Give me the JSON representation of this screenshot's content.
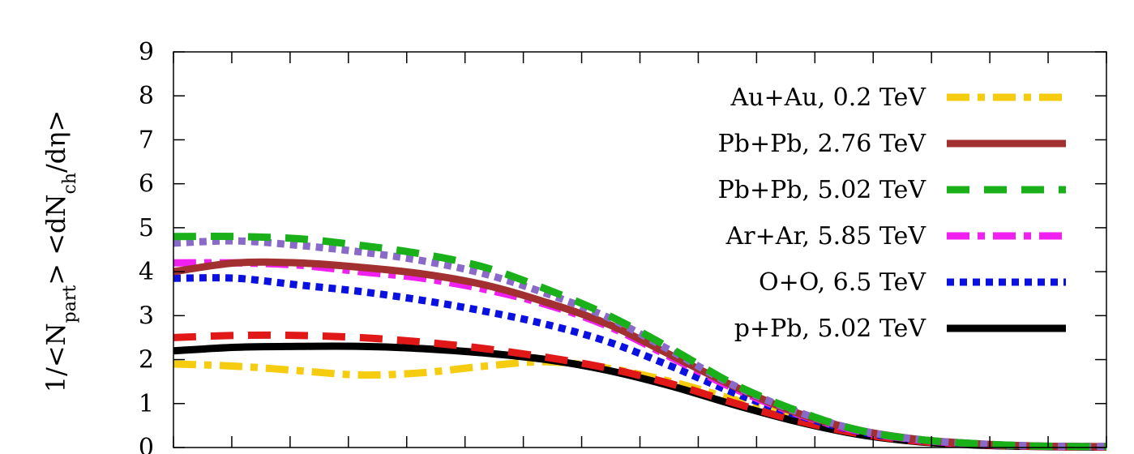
{
  "chart_data": {
    "type": "line",
    "title": "",
    "xlabel": "",
    "ylabel": {
      "p1": "1/<N",
      "s1": "part",
      "p2": "> <dN",
      "s2": "ch",
      "p3": "/dη>"
    },
    "xlim": [
      0,
      15
    ],
    "ylim": [
      0,
      9
    ],
    "yticks": [
      "0",
      "1",
      "2",
      "3",
      "4",
      "5",
      "6",
      "7",
      "8",
      "9"
    ],
    "grid": false,
    "legend_position": "top-right",
    "series": [
      {
        "name": "Au+Au, 0.2 TeV",
        "color": "#f5cc10",
        "dash": "dashdot",
        "x": [
          0,
          1,
          2,
          3,
          4,
          5,
          6,
          7,
          8,
          9,
          10,
          11,
          12,
          13,
          14,
          15
        ],
        "y": [
          1.9,
          1.85,
          1.75,
          1.65,
          1.7,
          1.85,
          1.95,
          1.8,
          1.5,
          1.1,
          0.7,
          0.35,
          0.15,
          0.07,
          0.03,
          0.02
        ]
      },
      {
        "name": "Pb+Pb, 2.76 TeV",
        "color": "#a33030",
        "dash": "solid",
        "x": [
          0,
          1,
          2,
          3,
          4,
          5,
          6,
          7,
          8,
          9,
          10,
          11,
          12,
          13,
          14,
          15
        ],
        "y": [
          4.0,
          4.2,
          4.2,
          4.1,
          3.95,
          3.7,
          3.3,
          2.8,
          2.1,
          1.4,
          0.8,
          0.4,
          0.18,
          0.08,
          0.03,
          0.02
        ]
      },
      {
        "name": "Pb+Pb, 5.02 TeV",
        "color": "#1ab01a",
        "dash": "dashed",
        "x": [
          0,
          1,
          2,
          3,
          4,
          5,
          6,
          7,
          8,
          9,
          10,
          11,
          12,
          13,
          14,
          15
        ],
        "y": [
          4.8,
          4.8,
          4.75,
          4.6,
          4.4,
          4.1,
          3.6,
          3.0,
          2.25,
          1.45,
          0.85,
          0.4,
          0.18,
          0.08,
          0.03,
          0.02
        ]
      },
      {
        "name": "Ar+Ar, 5.85 TeV",
        "color": "#f020f0",
        "dash": "dashdot",
        "x": [
          0,
          1,
          2,
          3,
          4,
          5,
          6,
          7,
          8,
          9,
          10,
          11,
          12,
          13,
          14,
          15
        ],
        "y": [
          4.2,
          4.2,
          4.15,
          4.0,
          3.85,
          3.6,
          3.25,
          2.75,
          2.05,
          1.35,
          0.78,
          0.38,
          0.17,
          0.07,
          0.03,
          0.02
        ]
      },
      {
        "name": "O+O, 6.5 TeV",
        "color": "#0a10e0",
        "dash": "dotted",
        "x": [
          0,
          1,
          2,
          3,
          4,
          5,
          6,
          7,
          8,
          9,
          10,
          11,
          12,
          13,
          14,
          15
        ],
        "y": [
          3.85,
          3.85,
          3.7,
          3.55,
          3.35,
          3.1,
          2.8,
          2.4,
          1.85,
          1.25,
          0.75,
          0.37,
          0.17,
          0.07,
          0.03,
          0.02
        ]
      },
      {
        "name": "p+Pb, 5.02 TeV",
        "color": "#000000",
        "dash": "solid",
        "x": [
          0,
          1,
          2,
          3,
          4,
          5,
          6,
          7,
          8,
          9,
          10,
          11,
          12,
          13,
          14,
          15
        ],
        "y": [
          2.2,
          2.28,
          2.3,
          2.3,
          2.25,
          2.15,
          2.0,
          1.75,
          1.4,
          0.98,
          0.6,
          0.3,
          0.13,
          0.05,
          0.02,
          0.01
        ]
      },
      {
        "name": "",
        "color": "#e01818",
        "dash": "dashed",
        "x": [
          0,
          1,
          2,
          3,
          4,
          5,
          6,
          7,
          8,
          9,
          10,
          11,
          12,
          13,
          14,
          15
        ],
        "y": [
          2.5,
          2.55,
          2.55,
          2.5,
          2.4,
          2.25,
          2.05,
          1.8,
          1.45,
          1.02,
          0.62,
          0.32,
          0.14,
          0.06,
          0.02,
          0.01
        ]
      },
      {
        "name": "",
        "color": "#8a6ac8",
        "dash": "dotted",
        "x": [
          0,
          1,
          2,
          3,
          4,
          5,
          6,
          7,
          8,
          9,
          10,
          11,
          12,
          13,
          14,
          15
        ],
        "y": [
          4.65,
          4.7,
          4.6,
          4.45,
          4.25,
          3.95,
          3.5,
          2.95,
          2.2,
          1.42,
          0.83,
          0.4,
          0.18,
          0.08,
          0.03,
          0.02
        ]
      }
    ]
  }
}
